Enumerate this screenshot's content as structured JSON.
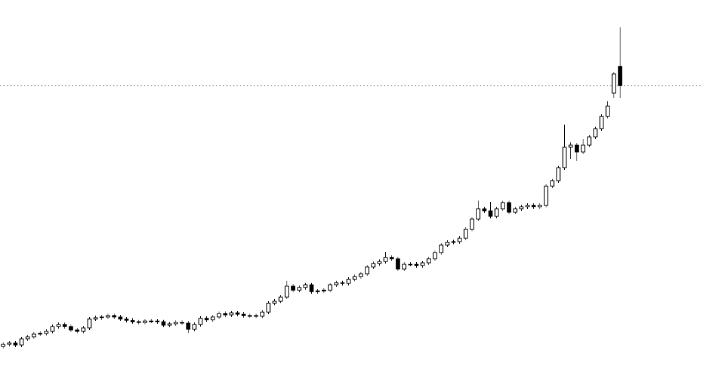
{
  "chart_data": {
    "type": "candlestick",
    "ylim": [
      0,
      558
    ],
    "up_color": "#ffffff",
    "down_color": "#000000",
    "edge_color": "#000000",
    "level": 433,
    "level_color": "#f0a000",
    "open": [
      52,
      55,
      57,
      54,
      63,
      66,
      70,
      71,
      74,
      81,
      84,
      81,
      76,
      74,
      79,
      92,
      94,
      95,
      97,
      95,
      92,
      90,
      88,
      87,
      89,
      89,
      88,
      83,
      85,
      87,
      86,
      77,
      84,
      93,
      91,
      95,
      100,
      98,
      101,
      99,
      97,
      97,
      96,
      102,
      115,
      118,
      124,
      140,
      134,
      138,
      142,
      132,
      133,
      134,
      142,
      145,
      144,
      150,
      154,
      158,
      168,
      173,
      176,
      182,
      180,
      165,
      172,
      172,
      170,
      174,
      180,
      189,
      200,
      204,
      205,
      210,
      223,
      238,
      253,
      250,
      242,
      253,
      262,
      248,
      253,
      256,
      258,
      256,
      258,
      286,
      294,
      313,
      343,
      346,
      336,
      346,
      358,
      370,
      388,
      422,
      461
    ],
    "close": [
      55,
      57,
      54,
      63,
      66,
      70,
      71,
      74,
      81,
      84,
      81,
      76,
      74,
      79,
      92,
      94,
      95,
      97,
      95,
      92,
      90,
      88,
      87,
      89,
      89,
      88,
      83,
      85,
      87,
      86,
      77,
      84,
      93,
      91,
      95,
      100,
      98,
      101,
      99,
      97,
      97,
      96,
      102,
      115,
      118,
      124,
      140,
      134,
      138,
      142,
      132,
      133,
      134,
      142,
      145,
      144,
      150,
      154,
      158,
      168,
      173,
      176,
      182,
      180,
      165,
      172,
      172,
      170,
      174,
      180,
      189,
      200,
      204,
      205,
      210,
      223,
      238,
      253,
      250,
      242,
      253,
      262,
      248,
      253,
      256,
      258,
      256,
      258,
      286,
      294,
      313,
      343,
      346,
      336,
      346,
      358,
      370,
      388,
      403,
      450,
      433
    ],
    "high": [
      58,
      60,
      60,
      66,
      69,
      73,
      74,
      77,
      84,
      87,
      87,
      84,
      79,
      82,
      95,
      97,
      98,
      100,
      100,
      98,
      95,
      93,
      91,
      92,
      92,
      92,
      91,
      88,
      90,
      90,
      89,
      87,
      96,
      96,
      98,
      103,
      103,
      104,
      104,
      102,
      100,
      100,
      105,
      118,
      121,
      127,
      148,
      143,
      141,
      145,
      145,
      136,
      137,
      145,
      148,
      148,
      153,
      157,
      161,
      171,
      176,
      179,
      190,
      185,
      183,
      175,
      175,
      175,
      177,
      183,
      192,
      203,
      207,
      208,
      213,
      226,
      241,
      265,
      256,
      263,
      256,
      265,
      265,
      256,
      259,
      261,
      261,
      261,
      289,
      297,
      316,
      376,
      350,
      349,
      355,
      361,
      373,
      391,
      410,
      453,
      518
    ],
    "low": [
      49,
      52,
      51,
      51,
      60,
      63,
      67,
      68,
      71,
      78,
      78,
      73,
      71,
      71,
      76,
      89,
      91,
      92,
      92,
      89,
      87,
      85,
      84,
      84,
      86,
      85,
      80,
      80,
      82,
      83,
      72,
      74,
      81,
      88,
      88,
      92,
      95,
      95,
      96,
      94,
      94,
      93,
      93,
      99,
      112,
      115,
      121,
      131,
      131,
      135,
      129,
      129,
      130,
      131,
      139,
      141,
      141,
      147,
      151,
      155,
      165,
      170,
      173,
      177,
      162,
      162,
      169,
      167,
      167,
      171,
      177,
      186,
      197,
      201,
      202,
      207,
      220,
      235,
      247,
      239,
      239,
      250,
      245,
      245,
      250,
      253,
      253,
      253,
      255,
      283,
      291,
      310,
      326,
      323,
      333,
      343,
      355,
      367,
      385,
      415,
      415
    ]
  }
}
